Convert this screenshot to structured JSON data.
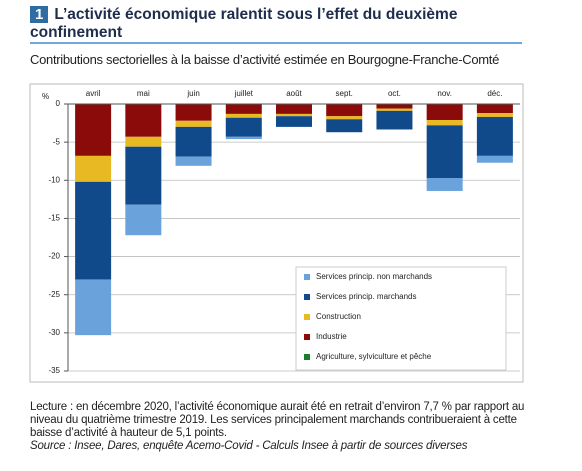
{
  "chart_data": {
    "type": "bar",
    "stacked": true,
    "number": "1",
    "title": "L’activité économique ralentit sous l’effet du deuxième confinement",
    "subtitle": "Contributions sectorielles à la baisse d’activité estimée en Bourgogne-Franche-Comté",
    "y_label": "%",
    "categories": [
      "avril",
      "mai",
      "juin",
      "juillet",
      "août",
      "sept.",
      "oct.",
      "nov.",
      "déc."
    ],
    "series": [
      {
        "name": "Agriculture, sylviculture et pêche",
        "color": "#1a7f2a",
        "values": [
          0,
          0,
          0,
          0,
          0,
          0,
          0,
          0,
          0
        ]
      },
      {
        "name": "Industrie",
        "color": "#8b0a0a",
        "values": [
          -6.8,
          -4.3,
          -2.2,
          -1.3,
          -1.3,
          -1.6,
          -0.6,
          -2.1,
          -1.2
        ]
      },
      {
        "name": "Construction",
        "color": "#e8b923",
        "values": [
          -3.4,
          -1.3,
          -0.8,
          -0.5,
          -0.3,
          -0.4,
          -0.3,
          -0.7,
          -0.5
        ]
      },
      {
        "name": "Services princip. marchands",
        "color": "#114a8a",
        "values": [
          -12.8,
          -7.6,
          -3.9,
          -2.5,
          -1.4,
          -1.7,
          -2.4,
          -6.9,
          -5.1
        ]
      },
      {
        "name": "Services princip. non marchands",
        "color": "#6aa2dc",
        "values": [
          -7.3,
          -4.0,
          -1.2,
          -0.3,
          0,
          0,
          -0.1,
          -1.7,
          -0.9
        ]
      }
    ],
    "ylim": [
      -35,
      0
    ],
    "yticks": [
      0,
      -5,
      -10,
      -15,
      -20,
      -25,
      -30,
      -35
    ],
    "grid": true,
    "notes": [
      "Lecture : en décembre 2020, l’activité économique aurait été en retrait d’environ 7,7 % par rapport au niveau du quatrième trimestre 2019. Les services principalement marchands contribueraient à cette baisse d’activité à hauteur de 5,1 points."
    ],
    "source": "Source : Insee, Dares, enquête Acemo-Covid - Calculs Insee à partir de sources diverses"
  }
}
